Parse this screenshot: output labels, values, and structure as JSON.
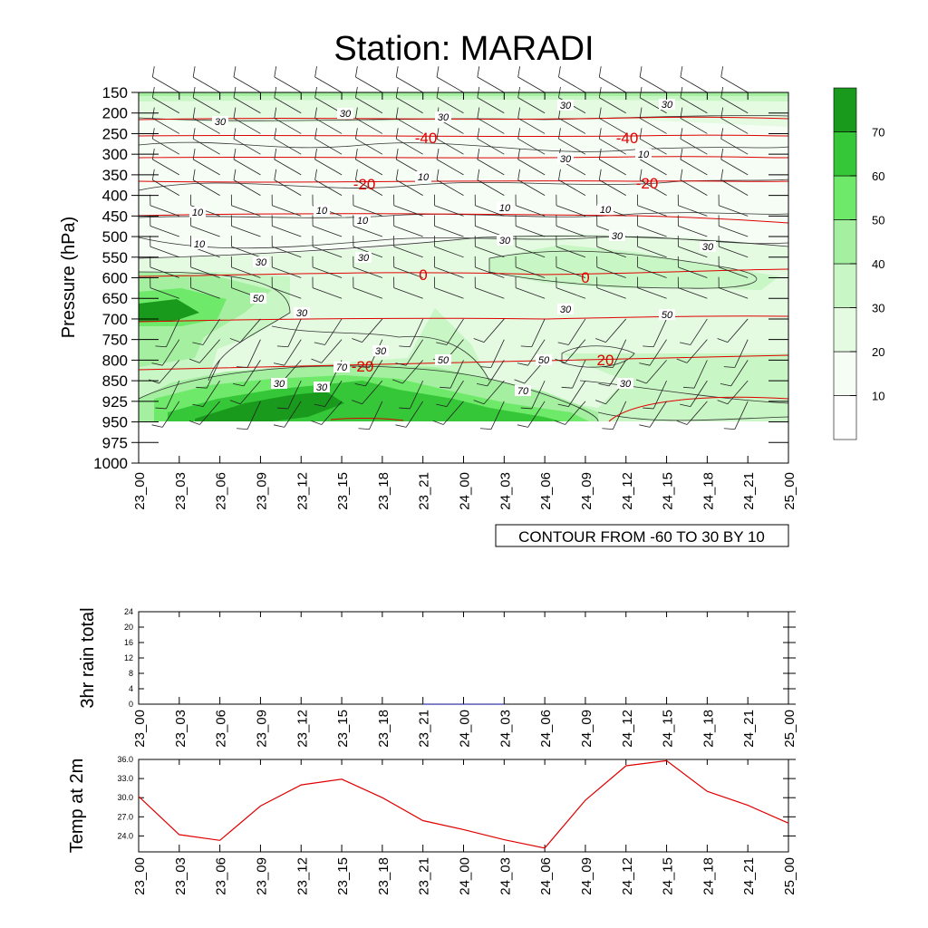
{
  "title": "Station: MARADI",
  "time_labels": [
    "23_00",
    "23_03",
    "23_06",
    "23_09",
    "23_12",
    "23_15",
    "23_18",
    "23_21",
    "24_00",
    "24_03",
    "24_06",
    "24_09",
    "24_12",
    "24_15",
    "24_18",
    "24_21",
    "25_00"
  ],
  "chart_data": [
    {
      "type": "heatmap",
      "name": "rh-contour",
      "ylabel": "Pressure (hPa)",
      "pressure_levels": [
        "150",
        "200",
        "250",
        "300",
        "350",
        "400",
        "450",
        "500",
        "550",
        "600",
        "650",
        "700",
        "750",
        "800",
        "850",
        "925",
        "950",
        "975",
        "1000"
      ],
      "contour_info": "CONTOUR FROM -60 TO 30 BY 10",
      "colorbar_labels": [
        "10",
        "20",
        "30",
        "40",
        "50",
        "60",
        "70"
      ],
      "colorbar_colors": [
        "#ffffff",
        "#f6fdf5",
        "#e4fbe2",
        "#c8f6c4",
        "#a4efa0",
        "#6ee96a",
        "#35c737",
        "#1a9a1c"
      ],
      "temperature_contour_labels": [
        "-40",
        "-40",
        "-20",
        "-20",
        "0",
        "0",
        "-20",
        "20"
      ],
      "rh_contour_labels": [
        "30",
        "30",
        "30",
        "30",
        "30",
        "10",
        "10",
        "10",
        "10",
        "10",
        "10",
        "10",
        "30",
        "30",
        "30",
        "10",
        "30",
        "50",
        "30",
        "30",
        "30",
        "30",
        "30",
        "50",
        "50",
        "50",
        "70",
        "70",
        "30",
        "30",
        "30"
      ],
      "line_color": "#e00000"
    },
    {
      "type": "bar",
      "name": "rain-panel",
      "ylabel": "3hr rain total",
      "yticks": [
        "0",
        "4",
        "8",
        "12",
        "16",
        "20",
        "24"
      ],
      "ylim": [
        0,
        24
      ],
      "x": [
        21.5,
        22.5,
        23.5,
        24.5,
        25.5,
        26.5
      ],
      "values": [
        0.1,
        0.1,
        0.1,
        0.1,
        0.1,
        0.1
      ],
      "xrange_hours": [
        0,
        48
      ],
      "bar_color": "#1a1aa0"
    },
    {
      "type": "line",
      "name": "temp-panel",
      "ylabel": "Temp at 2m",
      "yticks": [
        "24.0",
        "27.0",
        "30.0",
        "33.0",
        "36.0"
      ],
      "ylim": [
        21.5,
        36.0
      ],
      "x": [
        0,
        3,
        6,
        9,
        12,
        15,
        18,
        21,
        24,
        27,
        30,
        33,
        36,
        39,
        42,
        45,
        48
      ],
      "values": [
        30.2,
        24.2,
        23.3,
        28.7,
        32.0,
        32.9,
        30.0,
        26.4,
        25.0,
        23.4,
        22.1,
        29.6,
        35.0,
        35.8,
        31.0,
        28.8,
        26.0
      ],
      "xrange_hours": [
        0,
        48
      ],
      "line_color": "#e00000"
    }
  ]
}
